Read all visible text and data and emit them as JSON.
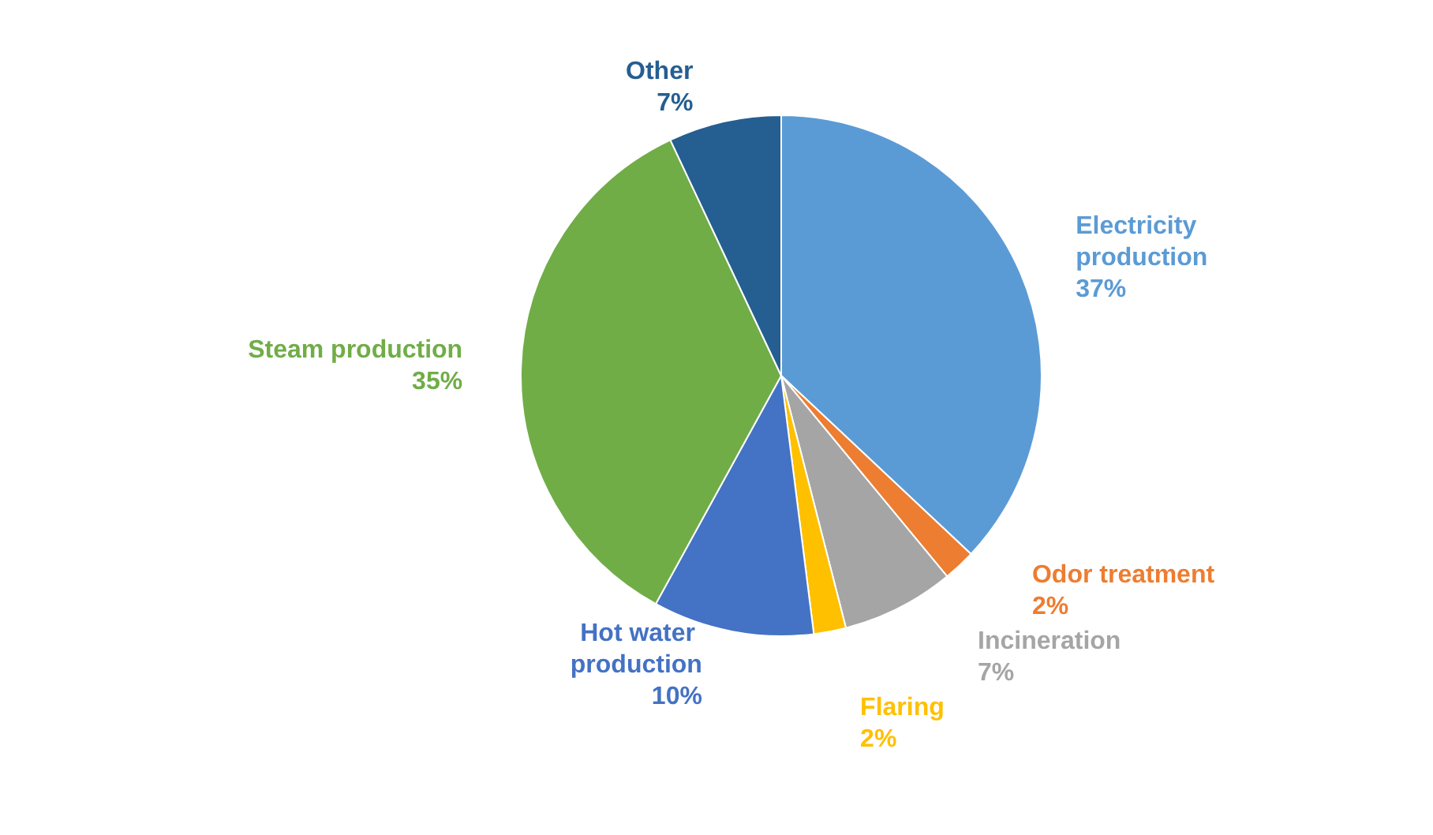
{
  "chart_data": {
    "type": "pie",
    "categories": [
      "Electricity production",
      "Odor treatment",
      "Incineration",
      "Flaring",
      "Hot water production",
      "Steam production",
      "Other"
    ],
    "values": [
      37,
      2,
      7,
      2,
      10,
      35,
      7
    ],
    "value_labels": [
      "37%",
      "2%",
      "7%",
      "2%",
      "10%",
      "35%",
      "7%"
    ],
    "colors": [
      "#5b9bd5",
      "#ed7d31",
      "#a5a5a5",
      "#ffc000",
      "#4472c4",
      "#70ad47",
      "#255e91"
    ]
  }
}
